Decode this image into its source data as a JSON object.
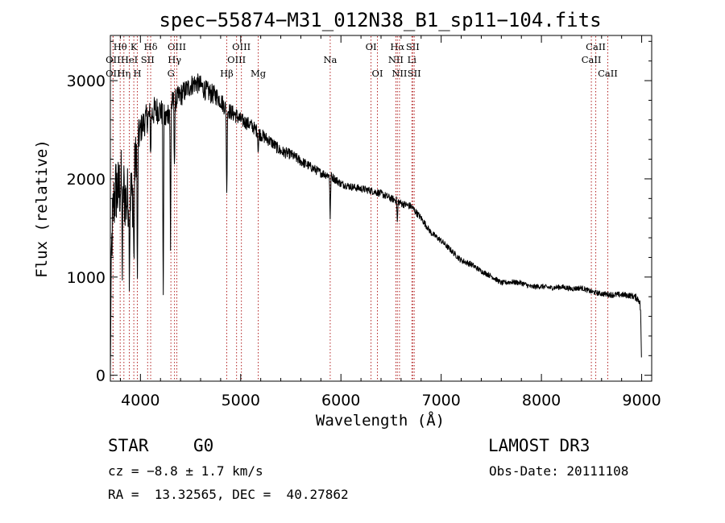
{
  "chart_data": {
    "type": "line",
    "title": "spec−55874−M31_012N38_B1_sp11−104.fits",
    "xlabel": "Wavelength (Å)",
    "ylabel": "Flux (relative)",
    "xlim": [
      3700,
      9100
    ],
    "ylim": [
      -60,
      3460
    ],
    "x_ticks": [
      4000,
      5000,
      6000,
      7000,
      8000,
      9000
    ],
    "x_tick_labels": [
      "4000",
      "5000",
      "6000",
      "7000",
      "8000",
      "9000"
    ],
    "y_ticks": [
      0,
      1000,
      2000,
      3000
    ],
    "y_tick_labels": [
      "0",
      "1000",
      "2000",
      "3000"
    ],
    "spectrum": {
      "x": [
        3700,
        3710,
        3720,
        3740,
        3760,
        3780,
        3800,
        3830,
        3860,
        3890,
        3920,
        3950,
        3970,
        4000,
        4050,
        4100,
        4150,
        4200,
        4250,
        4300,
        4350,
        4400,
        4450,
        4500,
        4550,
        4600,
        4650,
        4700,
        4750,
        4800,
        4850,
        4900,
        4950,
        5000,
        5100,
        5200,
        5300,
        5400,
        5500,
        5600,
        5700,
        5800,
        5900,
        6000,
        6100,
        6200,
        6300,
        6400,
        6500,
        6563,
        6600,
        6700,
        6800,
        6900,
        7000,
        7100,
        7200,
        7300,
        7400,
        7500,
        7600,
        7700,
        7800,
        7900,
        8000,
        8100,
        8200,
        8300,
        8400,
        8500,
        8600,
        8700,
        8800,
        8900,
        8950,
        8980,
        8990,
        9000
      ],
      "y": [
        50,
        1200,
        1500,
        1800,
        1900,
        1850,
        1950,
        1900,
        1750,
        1900,
        1800,
        2200,
        2350,
        2500,
        2600,
        2650,
        2700,
        2700,
        2600,
        2750,
        2800,
        2850,
        2900,
        2950,
        2980,
        2950,
        2900,
        2870,
        2850,
        2800,
        2720,
        2680,
        2650,
        2600,
        2550,
        2450,
        2380,
        2280,
        2250,
        2180,
        2120,
        2060,
        2030,
        1950,
        1920,
        1900,
        1880,
        1850,
        1800,
        1780,
        1750,
        1720,
        1600,
        1450,
        1370,
        1270,
        1170,
        1130,
        1060,
        1010,
        940,
        950,
        940,
        900,
        905,
        890,
        900,
        880,
        890,
        850,
        830,
        820,
        820,
        810,
        790,
        760,
        640,
        60
      ],
      "noise": [
        0,
        250,
        500,
        500,
        500,
        500,
        500,
        500,
        450,
        450,
        450,
        350,
        300,
        200,
        200,
        200,
        200,
        180,
        180,
        180,
        160,
        160,
        150,
        150,
        140,
        140,
        140,
        140,
        130,
        120,
        120,
        110,
        110,
        100,
        90,
        90,
        80,
        80,
        70,
        70,
        65,
        60,
        60,
        55,
        50,
        50,
        50,
        50,
        50,
        50,
        50,
        50,
        45,
        40,
        40,
        40,
        40,
        40,
        35,
        35,
        35,
        35,
        35,
        35,
        35,
        35,
        35,
        35,
        35,
        35,
        35,
        40,
        40,
        40,
        50,
        60,
        60,
        0
      ],
      "absorption": [
        {
          "x": 3820,
          "depth": 900
        },
        {
          "x": 3890,
          "depth": 800
        },
        {
          "x": 3935,
          "depth": 950
        },
        {
          "x": 3970,
          "depth": 1500
        },
        {
          "x": 4102,
          "depth": 400
        },
        {
          "x": 4227,
          "depth": 2000
        },
        {
          "x": 4300,
          "depth": 1500
        },
        {
          "x": 4340,
          "depth": 700
        },
        {
          "x": 4861,
          "depth": 900
        },
        {
          "x": 5175,
          "depth": 200
        },
        {
          "x": 5893,
          "depth": 450
        },
        {
          "x": 6563,
          "depth": 250
        }
      ]
    },
    "line_markers": [
      {
        "label": "Hθ",
        "x": 3798,
        "row": 1
      },
      {
        "label": "OII",
        "x": 3727,
        "row": 2
      },
      {
        "label": "OII",
        "x": 3727,
        "row": 3
      },
      {
        "label": "Hη",
        "x": 3835,
        "row": 3
      },
      {
        "label": "HeI",
        "x": 3889,
        "row": 2
      },
      {
        "label": "K",
        "x": 3934,
        "row": 1
      },
      {
        "label": "H",
        "x": 3969,
        "row": 3
      },
      {
        "label": "SII",
        "x": 4072,
        "row": 2
      },
      {
        "label": "Hδ",
        "x": 4102,
        "row": 1
      },
      {
        "label": "OIII",
        "x": 4363,
        "row": 1
      },
      {
        "label": "Hγ",
        "x": 4340,
        "row": 2
      },
      {
        "label": "G",
        "x": 4304,
        "row": 3
      },
      {
        "label": "Hβ",
        "x": 4861,
        "row": 3
      },
      {
        "label": "OIII",
        "x": 4959,
        "row": 2
      },
      {
        "label": "OIII",
        "x": 5007,
        "row": 1
      },
      {
        "label": "Mg",
        "x": 5175,
        "row": 3
      },
      {
        "label": "Na",
        "x": 5893,
        "row": 2
      },
      {
        "label": "OI",
        "x": 6300,
        "row": 1
      },
      {
        "label": "OI",
        "x": 6364,
        "row": 3
      },
      {
        "label": "Hα",
        "x": 6563,
        "row": 1
      },
      {
        "label": "NII",
        "x": 6548,
        "row": 2
      },
      {
        "label": "NII",
        "x": 6584,
        "row": 3
      },
      {
        "label": "SII",
        "x": 6716,
        "row": 1
      },
      {
        "label": "Li",
        "x": 6708,
        "row": 2
      },
      {
        "label": "SII",
        "x": 6731,
        "row": 3
      },
      {
        "label": "CaII",
        "x": 8542,
        "row": 1
      },
      {
        "label": "CaII",
        "x": 8498,
        "row": 2
      },
      {
        "label": "CaII",
        "x": 8662,
        "row": 3
      }
    ]
  },
  "info": {
    "class_label": "STAR",
    "subclass": "G0",
    "survey": "LAMOST DR3",
    "cz": "cz = −8.8 ± 1.7 km/s",
    "obs_date": "Obs-Date: 20111108",
    "coords": "RA =  13.32565, DEC =  40.27862"
  },
  "colors": {
    "spectrum": "#000000",
    "marker": "#b22222",
    "axes": "#000000",
    "background": "#ffffff"
  }
}
